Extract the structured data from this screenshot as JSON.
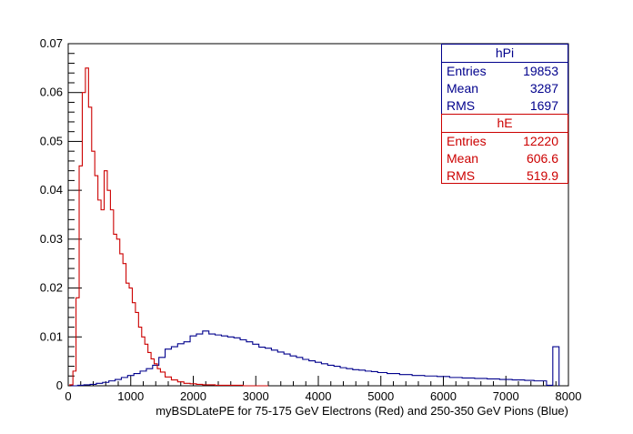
{
  "chart_data": {
    "type": "line",
    "xlabel": "myBSDLatePE for 75-175 GeV Electrons (Red) and 250-350 GeV Pions (Blue)",
    "ylabel": "",
    "title": "",
    "xlim": [
      0,
      8000
    ],
    "ylim": [
      0,
      0.07
    ],
    "x_ticks": [
      0,
      1000,
      2000,
      3000,
      4000,
      5000,
      6000,
      7000,
      8000
    ],
    "y_ticks": [
      0,
      0.01,
      0.02,
      0.03,
      0.04,
      0.05,
      0.06,
      0.07
    ],
    "x_tick_labels": [
      "0",
      "1000",
      "2000",
      "3000",
      "4000",
      "5000",
      "6000",
      "7000",
      "8000"
    ],
    "y_tick_labels": [
      "0",
      "0.01",
      "0.02",
      "0.03",
      "0.04",
      "0.05",
      "0.06",
      "0.07"
    ],
    "grid": false,
    "legend": "top-right",
    "series": [
      {
        "name": "hPi",
        "color": "#00008c",
        "x": [
          100,
          200,
          300,
          400,
          500,
          600,
          700,
          800,
          900,
          1000,
          1100,
          1200,
          1300,
          1400,
          1500,
          1600,
          1700,
          1800,
          1900,
          2000,
          2100,
          2200,
          2300,
          2400,
          2500,
          2600,
          2700,
          2800,
          2900,
          3000,
          3100,
          3200,
          3300,
          3400,
          3500,
          3600,
          3700,
          3800,
          3900,
          4000,
          4100,
          4200,
          4300,
          4400,
          4500,
          4600,
          4700,
          4800,
          4900,
          5000,
          5200,
          5400,
          5600,
          5800,
          6000,
          6200,
          6400,
          6600,
          6800,
          7000,
          7200,
          7400,
          7500,
          7600,
          7700,
          7800
        ],
        "y": [
          0.0,
          0.0001,
          0.0002,
          0.0003,
          0.0005,
          0.0007,
          0.001,
          0.0013,
          0.0017,
          0.0021,
          0.0025,
          0.003,
          0.0035,
          0.0042,
          0.0058,
          0.0075,
          0.008,
          0.0086,
          0.009,
          0.0102,
          0.0106,
          0.0112,
          0.0106,
          0.0104,
          0.0102,
          0.01,
          0.0098,
          0.0094,
          0.009,
          0.0085,
          0.0079,
          0.0077,
          0.0073,
          0.0069,
          0.0065,
          0.0061,
          0.0058,
          0.0054,
          0.0051,
          0.0048,
          0.0045,
          0.0042,
          0.004,
          0.0037,
          0.0035,
          0.0033,
          0.0032,
          0.003,
          0.0029,
          0.0027,
          0.0025,
          0.0023,
          0.0021,
          0.002,
          0.0019,
          0.0017,
          0.0016,
          0.0015,
          0.0014,
          0.0013,
          0.0012,
          0.0011,
          0.001,
          0.001,
          0.0001,
          0.008
        ]
      },
      {
        "name": "hE",
        "color": "#cc0000",
        "x": [
          50,
          100,
          150,
          200,
          250,
          300,
          350,
          400,
          450,
          500,
          550,
          600,
          650,
          700,
          750,
          800,
          850,
          900,
          950,
          1000,
          1050,
          1100,
          1150,
          1200,
          1250,
          1300,
          1350,
          1400,
          1450,
          1500,
          1600,
          1700,
          1800,
          1900,
          2000,
          2100,
          2200,
          2300,
          2400,
          2500,
          2700,
          2900,
          3100
        ],
        "y": [
          0.0002,
          0.003,
          0.018,
          0.045,
          0.06,
          0.065,
          0.057,
          0.048,
          0.043,
          0.038,
          0.036,
          0.044,
          0.04,
          0.036,
          0.031,
          0.03,
          0.027,
          0.025,
          0.021,
          0.02,
          0.017,
          0.015,
          0.012,
          0.01,
          0.0085,
          0.0068,
          0.0055,
          0.0045,
          0.0035,
          0.0028,
          0.0018,
          0.0012,
          0.0008,
          0.0005,
          0.0004,
          0.0003,
          0.0002,
          0.0002,
          0.0001,
          0.0001,
          0.0001,
          0.0,
          0.0
        ]
      }
    ],
    "stats": [
      {
        "name": "hPi",
        "color": "#00008c",
        "rows": [
          {
            "label": "Entries",
            "value": "19853"
          },
          {
            "label": "Mean",
            "value": "3287"
          },
          {
            "label": "RMS",
            "value": "1697"
          }
        ]
      },
      {
        "name": "hE",
        "color": "#cc0000",
        "rows": [
          {
            "label": "Entries",
            "value": "12220"
          },
          {
            "label": "Mean",
            "value": "606.6"
          },
          {
            "label": "RMS",
            "value": "519.9"
          }
        ]
      }
    ]
  }
}
